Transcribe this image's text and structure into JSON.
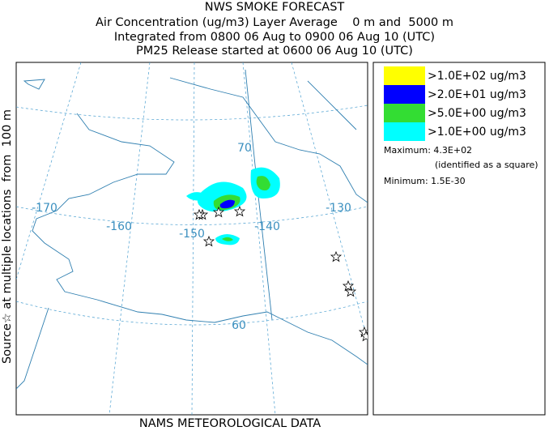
{
  "header": {
    "lines": [
      "NWS SMOKE FORECAST",
      "Air Concentration (ug/m3) Layer Average    0 m and  5000 m",
      "Integrated from 0800 06 Aug to 0900 06 Aug 10 (UTC)",
      "PM25 Release started at 0600 06 Aug 10 (UTC)"
    ]
  },
  "side_label": "Source☆ at multiple locations  from  100 m",
  "footer": "NAMS METEOROLOGICAL DATA",
  "legend": {
    "items": [
      {
        "label": ">1.0E+02 ug/m3",
        "color": "#ffff00"
      },
      {
        "label": ">2.0E+01 ug/m3",
        "color": "#0000ff"
      },
      {
        "label": ">5.0E+00 ug/m3",
        "color": "#33dd33"
      },
      {
        "label": ">1.0E+00 ug/m3",
        "color": "#00ffff"
      }
    ],
    "maximum": "Maximum: 4.3E+02",
    "maximum_note": "(identified as a square)",
    "minimum": "Minimum: 1.5E-30"
  },
  "map": {
    "labels": [
      "-170",
      "-160",
      "-150",
      "-140",
      "-130",
      "70",
      "60"
    ]
  }
}
